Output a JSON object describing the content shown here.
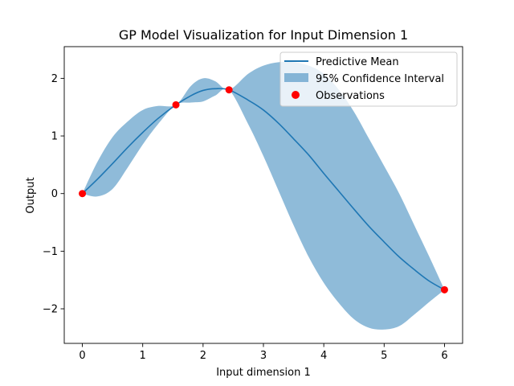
{
  "chart_data": {
    "type": "line",
    "title": "GP Model Visualization for Input Dimension 1",
    "xlabel": "Input dimension 1",
    "ylabel": "Output",
    "xlim": [
      -0.3,
      6.3
    ],
    "ylim": [
      -2.6,
      2.55
    ],
    "x_ticks": [
      0,
      1,
      2,
      3,
      4,
      5,
      6
    ],
    "x_tick_labels": [
      "0",
      "1",
      "2",
      "3",
      "4",
      "5",
      "6"
    ],
    "y_ticks": [
      -2,
      -1,
      0,
      1,
      2
    ],
    "y_tick_labels": [
      "−2",
      "−1",
      "0",
      "1",
      "2"
    ],
    "legend_position": "top-right",
    "colors": {
      "mean": "#1f77b4",
      "band": "#1f77b4",
      "band_opacity": 0.5,
      "observations": "#ff0000"
    },
    "series": [
      {
        "name": "Predictive Mean",
        "kind": "line",
        "x": [
          0,
          0.25,
          0.5,
          0.75,
          1.0,
          1.25,
          1.55,
          1.8,
          2.0,
          2.2,
          2.43,
          2.75,
          3.0,
          3.25,
          3.5,
          3.75,
          4.0,
          4.25,
          4.5,
          4.75,
          5.0,
          5.25,
          5.5,
          5.75,
          6.0
        ],
        "y": [
          0.0,
          0.25,
          0.52,
          0.8,
          1.06,
          1.3,
          1.54,
          1.7,
          1.79,
          1.82,
          1.8,
          1.62,
          1.45,
          1.22,
          0.95,
          0.67,
          0.35,
          0.04,
          -0.27,
          -0.57,
          -0.84,
          -1.1,
          -1.32,
          -1.52,
          -1.67
        ]
      },
      {
        "name": "95% Confidence Interval",
        "kind": "band",
        "x": [
          0,
          0.25,
          0.5,
          0.75,
          1.0,
          1.25,
          1.55,
          1.8,
          2.0,
          2.2,
          2.43,
          2.75,
          3.0,
          3.25,
          3.5,
          3.75,
          4.0,
          4.25,
          4.5,
          4.75,
          5.0,
          5.25,
          5.5,
          5.75,
          6.0
        ],
        "lower": [
          0.0,
          -0.05,
          0.08,
          0.45,
          0.85,
          1.2,
          1.54,
          1.58,
          1.6,
          1.7,
          1.8,
          1.2,
          0.65,
          0.05,
          -0.55,
          -1.1,
          -1.55,
          -1.9,
          -2.18,
          -2.33,
          -2.36,
          -2.3,
          -2.1,
          -1.88,
          -1.67
        ],
        "upper": [
          0.0,
          0.55,
          0.98,
          1.25,
          1.45,
          1.52,
          1.54,
          1.87,
          2.0,
          1.95,
          1.8,
          2.08,
          2.22,
          2.28,
          2.28,
          2.22,
          2.08,
          1.8,
          1.42,
          0.95,
          0.48,
          0.0,
          -0.55,
          -1.1,
          -1.67
        ]
      },
      {
        "name": "Observations",
        "kind": "scatter",
        "x": [
          0,
          1.55,
          2.43,
          6.0
        ],
        "y": [
          0.0,
          1.54,
          1.8,
          -1.67
        ]
      }
    ]
  }
}
